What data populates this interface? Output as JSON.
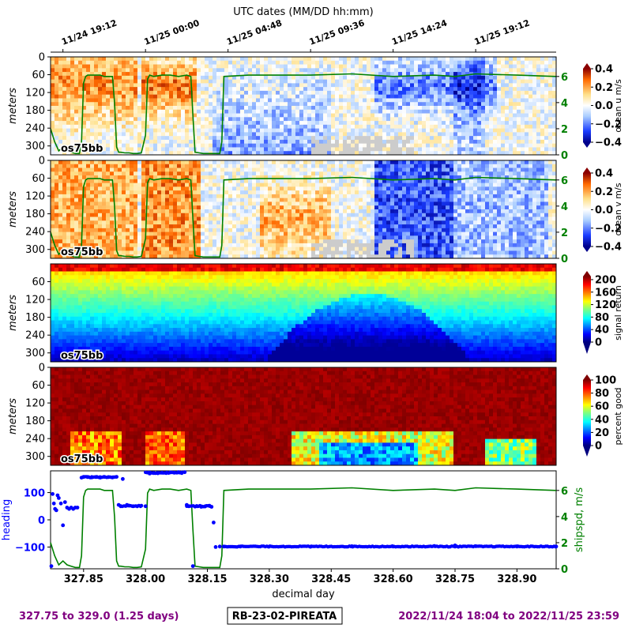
{
  "figure": {
    "top_axis_title": "UTC dates (MM/DD hh:mm)",
    "top_ticks": [
      "11/24 19:12",
      "11/25 00:00",
      "11/25 04:48",
      "11/25 09:36",
      "11/25 14:24",
      "11/25 19:12"
    ],
    "footer_left": "327.75 to 329.0 (1.25 days)",
    "footer_center": "RB-23-02-PIREATA",
    "footer_right": "2022/11/24 18:04 to 2022/11/25 23:59",
    "colors": {
      "footer_text": "#800080",
      "shipspd": "#008000",
      "heading": "#0000ff",
      "nodata": "#cccccc"
    }
  },
  "chart_data": [
    {
      "type": "heatmap",
      "ylabel": "meters",
      "yticks": [
        "0",
        "60",
        "120",
        "180",
        "240",
        "300"
      ],
      "instrument_label": "os75bb",
      "colorbar_label": "ocean u m/s",
      "colorbar_ticks": [
        "0.4",
        "0.2",
        "0.0",
        "−0.2",
        "−0.4"
      ],
      "colormap": "bwr",
      "clim": [
        -0.4,
        0.4
      ],
      "overlay": {
        "name": "shipspd",
        "right_ticks": [
          "6",
          "4",
          "2",
          "0"
        ],
        "ylim": [
          0,
          7.5
        ]
      }
    },
    {
      "type": "heatmap",
      "ylabel": "meters",
      "yticks": [
        "0",
        "60",
        "120",
        "180",
        "240",
        "300"
      ],
      "instrument_label": "os75bb",
      "colorbar_label": "ocean v m/s",
      "colorbar_ticks": [
        "0.4",
        "0.2",
        "0.0",
        "−0.2",
        "−0.4"
      ],
      "colormap": "bwr",
      "clim": [
        -0.4,
        0.4
      ],
      "overlay": {
        "name": "shipspd",
        "right_ticks": [
          "6",
          "4",
          "2",
          "0"
        ],
        "ylim": [
          0,
          7.5
        ]
      }
    },
    {
      "type": "heatmap",
      "ylabel": "meters",
      "yticks": [
        "60",
        "120",
        "180",
        "240",
        "300"
      ],
      "instrument_label": "os75bb",
      "colorbar_label": "signal return",
      "colorbar_ticks": [
        "200",
        "160",
        "120",
        "80",
        "40",
        "0"
      ],
      "colormap": "jet",
      "clim": [
        0,
        210
      ]
    },
    {
      "type": "heatmap",
      "ylabel": "meters",
      "yticks": [
        "0",
        "60",
        "120",
        "180",
        "240",
        "300"
      ],
      "instrument_label": "os75bb",
      "colorbar_label": "percent good",
      "colorbar_ticks": [
        "100",
        "80",
        "60",
        "40",
        "20",
        "0"
      ],
      "colormap": "jet",
      "clim": [
        0,
        100
      ]
    },
    {
      "type": "line",
      "xlabel": "decimal day",
      "xticks": [
        "327.85",
        "328.00",
        "328.15",
        "328.30",
        "328.45",
        "328.60",
        "328.75",
        "328.90"
      ],
      "xlim": [
        327.77,
        328.995
      ],
      "ylabel_left": "heading",
      "yticks_left": [
        "100",
        "0",
        "−100"
      ],
      "ylim_left": [
        -180,
        180
      ],
      "ylabel_right": "shipspd, m/s",
      "yticks_right": [
        "6",
        "4",
        "2",
        "0"
      ],
      "ylim_right": [
        0,
        7.5
      ],
      "series": [
        {
          "name": "heading",
          "style": "points",
          "x": [
            327.772,
            327.775,
            327.778,
            327.781,
            327.784,
            327.787,
            327.79,
            327.795,
            327.8,
            327.805,
            327.81,
            327.815,
            327.82,
            327.825,
            327.83,
            327.835,
            327.845,
            327.85,
            327.86,
            327.87,
            327.88,
            327.89,
            327.9,
            327.91,
            327.92,
            327.93,
            327.935,
            327.94,
            327.945,
            327.955,
            327.96,
            327.97,
            327.98,
            327.99,
            328.0,
            328.01,
            328.02,
            328.03,
            328.04,
            328.05,
            328.06,
            328.07,
            328.08,
            328.088,
            328.095,
            328.1,
            328.105,
            328.115,
            328.125,
            328.135,
            328.145,
            328.155,
            328.16,
            328.165,
            328.17,
            328.18,
            328.19,
            328.23,
            328.3,
            328.4,
            328.5,
            328.6,
            328.7,
            328.75,
            328.8,
            328.9,
            328.995
          ],
          "y": [
            -170,
            95,
            60,
            40,
            35,
            90,
            80,
            60,
            -20,
            65,
            45,
            40,
            45,
            40,
            45,
            45,
            155,
            158,
            157,
            156,
            157,
            155,
            158,
            157,
            156,
            158,
            55,
            50,
            150,
            55,
            52,
            50,
            50,
            52,
            50,
            170,
            172,
            171,
            173,
            172,
            174,
            173,
            175,
            172,
            175,
            55,
            50,
            -170,
            50,
            48,
            50,
            52,
            48,
            -10,
            -100,
            -98,
            -98,
            -98,
            -98,
            -99,
            -97,
            -98,
            -96,
            -94,
            -97,
            -98,
            -98
          ]
        },
        {
          "name": "shipspd, m/s",
          "style": "line",
          "x": [
            327.77,
            327.78,
            327.79,
            327.8,
            327.81,
            327.82,
            327.83,
            327.84,
            327.845,
            327.85,
            327.855,
            327.86,
            327.87,
            327.88,
            327.89,
            327.9,
            327.91,
            327.92,
            327.925,
            327.93,
            327.935,
            327.94,
            327.95,
            327.96,
            327.97,
            327.98,
            327.99,
            328.0,
            328.005,
            328.01,
            328.02,
            328.04,
            328.06,
            328.08,
            328.1,
            328.11,
            328.115,
            328.12,
            328.13,
            328.14,
            328.15,
            328.16,
            328.17,
            328.18,
            328.185,
            328.19,
            328.25,
            328.3,
            328.4,
            328.5,
            328.6,
            328.7,
            328.75,
            328.8,
            328.9,
            328.995
          ],
          "y": [
            2.0,
            1.0,
            0.3,
            0.6,
            0.3,
            0.2,
            0.1,
            0.1,
            1.0,
            5.5,
            6.0,
            6.1,
            6.1,
            6.1,
            6.1,
            6.0,
            6.0,
            6.0,
            4.0,
            0.6,
            0.2,
            0.2,
            0.15,
            0.15,
            0.1,
            0.1,
            0.15,
            1.5,
            5.8,
            6.1,
            6.0,
            6.1,
            6.1,
            6.0,
            6.1,
            6.0,
            3.0,
            0.2,
            0.15,
            0.1,
            0.1,
            0.1,
            0.1,
            0.1,
            1.0,
            6.0,
            6.1,
            6.1,
            6.1,
            6.2,
            6.0,
            6.1,
            6.0,
            6.2,
            6.1,
            6.0
          ]
        }
      ]
    }
  ]
}
